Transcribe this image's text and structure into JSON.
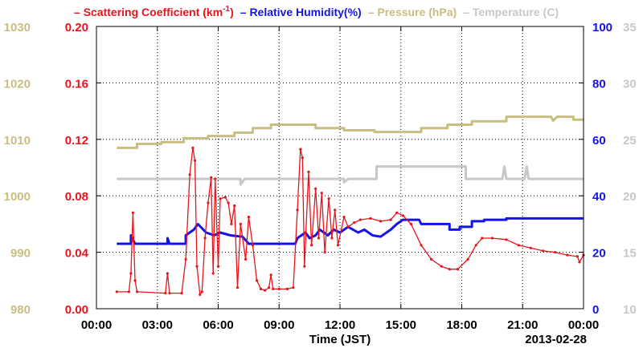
{
  "chart_data": {
    "type": "line",
    "legend_position": "top",
    "legend": [
      {
        "dash": "–",
        "label": "Scattering Coefficient (km",
        "sup": "-1",
        "after": ")",
        "color": "#e8141c"
      },
      {
        "dash": "–",
        "label": "Relative Humidity(%)",
        "sup": "",
        "after": "",
        "color": "#1414e6"
      },
      {
        "dash": "–",
        "label": "Pressure (hPa)",
        "sup": "",
        "after": "",
        "color": "#c8be82"
      },
      {
        "dash": "–",
        "label": "Temperature (",
        "sup": "",
        "after": "C)",
        "color": "#c8c8c8"
      }
    ],
    "xlabel": "Time (JST)",
    "date_label": "2013-02-28",
    "x_ticks": [
      "00:00",
      "03:00",
      "06:00",
      "09:00",
      "12:00",
      "15:00",
      "18:00",
      "21:00",
      "00:00"
    ],
    "x_range_hours": [
      0,
      24
    ],
    "grid": true,
    "axes": {
      "scattering": {
        "ticks": [
          "0.00",
          "0.04",
          "0.08",
          "0.12",
          "0.16",
          "0.20"
        ],
        "range": [
          0,
          0.2
        ],
        "color": "#e8141c"
      },
      "pressure": {
        "ticks": [
          "980",
          "990",
          "1000",
          "1010",
          "1020",
          "1030"
        ],
        "range": [
          980,
          1030
        ],
        "color": "#c8be82"
      },
      "humidity": {
        "ticks": [
          "0",
          "20",
          "40",
          "60",
          "80",
          "100"
        ],
        "range": [
          0,
          100
        ],
        "color": "#1414e6"
      },
      "temperature": {
        "ticks": [
          "10",
          "15",
          "20",
          "25",
          "30",
          "35"
        ],
        "range": [
          10,
          35
        ],
        "color": "#c8c8c8"
      }
    },
    "series": [
      {
        "name": "Pressure (hPa)",
        "axis": "pressure",
        "color": "#c8be82",
        "step": true,
        "points": [
          [
            1.0,
            1008.5
          ],
          [
            2.0,
            1008.5
          ],
          [
            2.0,
            1009.2
          ],
          [
            3.2,
            1009.2
          ],
          [
            3.2,
            1009.5
          ],
          [
            4.3,
            1009.5
          ],
          [
            4.3,
            1010.2
          ],
          [
            5.5,
            1010.2
          ],
          [
            5.5,
            1010.6
          ],
          [
            6.8,
            1010.6
          ],
          [
            6.8,
            1011.2
          ],
          [
            7.7,
            1011.2
          ],
          [
            7.7,
            1012.0
          ],
          [
            8.6,
            1012.0
          ],
          [
            8.6,
            1012.6
          ],
          [
            10.8,
            1012.6
          ],
          [
            10.8,
            1012.0
          ],
          [
            12.2,
            1012.0
          ],
          [
            12.2,
            1011.6
          ],
          [
            13.7,
            1011.6
          ],
          [
            13.7,
            1011.3
          ],
          [
            16.0,
            1011.3
          ],
          [
            16.0,
            1012.0
          ],
          [
            17.3,
            1012.0
          ],
          [
            17.3,
            1012.6
          ],
          [
            18.5,
            1012.6
          ],
          [
            18.5,
            1013.2
          ],
          [
            20.2,
            1013.2
          ],
          [
            20.2,
            1014.0
          ],
          [
            22.4,
            1014.0
          ],
          [
            22.5,
            1013.3
          ],
          [
            22.7,
            1014.0
          ],
          [
            23.5,
            1014.0
          ],
          [
            23.5,
            1013.5
          ],
          [
            24.0,
            1013.5
          ]
        ]
      },
      {
        "name": "Temperature (C)",
        "axis": "temperature",
        "color": "#c8c8c8",
        "step": true,
        "points": [
          [
            1.0,
            21.5
          ],
          [
            7.1,
            21.5
          ],
          [
            7.1,
            21.0
          ],
          [
            7.3,
            21.5
          ],
          [
            12.2,
            21.5
          ],
          [
            12.2,
            21.2
          ],
          [
            12.4,
            21.5
          ],
          [
            13.8,
            21.5
          ],
          [
            13.8,
            22.6
          ],
          [
            18.2,
            22.6
          ],
          [
            18.2,
            21.5
          ],
          [
            20.0,
            21.5
          ],
          [
            20.1,
            22.6
          ],
          [
            20.2,
            21.5
          ],
          [
            21.1,
            21.5
          ],
          [
            21.2,
            22.6
          ],
          [
            21.3,
            21.5
          ],
          [
            24.0,
            21.5
          ]
        ]
      },
      {
        "name": "Relative Humidity(%)",
        "axis": "humidity",
        "color": "#1414e6",
        "step": true,
        "points": [
          [
            1.0,
            23.0
          ],
          [
            1.7,
            23.0
          ],
          [
            1.7,
            26.0
          ],
          [
            1.9,
            23.0
          ],
          [
            3.5,
            23.0
          ],
          [
            3.5,
            25.0
          ],
          [
            3.6,
            23.0
          ],
          [
            4.4,
            23.0
          ],
          [
            4.4,
            26.0
          ],
          [
            4.8,
            28.0
          ],
          [
            5.0,
            30.0
          ],
          [
            5.4,
            27.0
          ],
          [
            5.8,
            26.0
          ],
          [
            6.1,
            27.0
          ],
          [
            6.6,
            26.0
          ],
          [
            7.2,
            25.5
          ],
          [
            7.5,
            23.0
          ],
          [
            9.8,
            23.0
          ],
          [
            9.9,
            25.0
          ],
          [
            10.1,
            26.0
          ],
          [
            10.3,
            27.0
          ],
          [
            10.5,
            25.0
          ],
          [
            10.8,
            26.0
          ],
          [
            11.0,
            28.0
          ],
          [
            11.4,
            26.0
          ],
          [
            11.7,
            28.0
          ],
          [
            12.0,
            27.0
          ],
          [
            12.4,
            29.0
          ],
          [
            12.9,
            27.0
          ],
          [
            13.2,
            28.0
          ],
          [
            13.6,
            26.0
          ],
          [
            14.0,
            25.5
          ],
          [
            14.5,
            28.0
          ],
          [
            14.8,
            30.0
          ],
          [
            15.1,
            31.5
          ],
          [
            15.9,
            31.5
          ],
          [
            16.0,
            30.0
          ],
          [
            17.4,
            30.0
          ],
          [
            17.4,
            28.0
          ],
          [
            17.9,
            28.0
          ],
          [
            17.9,
            29.0
          ],
          [
            18.5,
            29.0
          ],
          [
            18.5,
            31.0
          ],
          [
            19.1,
            31.0
          ],
          [
            19.1,
            31.5
          ],
          [
            20.2,
            31.5
          ],
          [
            20.2,
            32.0
          ],
          [
            24.0,
            32.0
          ]
        ]
      },
      {
        "name": "Scattering Coefficient (km-1)",
        "axis": "scattering",
        "color": "#e8141c",
        "step": false,
        "markers": true,
        "points": [
          [
            1.0,
            0.012
          ],
          [
            1.6,
            0.012
          ],
          [
            1.7,
            0.025
          ],
          [
            1.8,
            0.068
          ],
          [
            1.9,
            0.02
          ],
          [
            2.0,
            0.012
          ],
          [
            3.4,
            0.011
          ],
          [
            3.5,
            0.025
          ],
          [
            3.6,
            0.011
          ],
          [
            4.2,
            0.011
          ],
          [
            4.4,
            0.035
          ],
          [
            4.6,
            0.095
          ],
          [
            4.75,
            0.114
          ],
          [
            4.85,
            0.105
          ],
          [
            4.95,
            0.03
          ],
          [
            5.1,
            0.01
          ],
          [
            5.2,
            0.012
          ],
          [
            5.35,
            0.05
          ],
          [
            5.5,
            0.075
          ],
          [
            5.65,
            0.093
          ],
          [
            5.75,
            0.025
          ],
          [
            5.85,
            0.092
          ],
          [
            6.0,
            0.03
          ],
          [
            6.1,
            0.078
          ],
          [
            6.35,
            0.079
          ],
          [
            6.5,
            0.075
          ],
          [
            6.65,
            0.06
          ],
          [
            6.8,
            0.073
          ],
          [
            6.95,
            0.015
          ],
          [
            7.1,
            0.06
          ],
          [
            7.35,
            0.035
          ],
          [
            7.5,
            0.065
          ],
          [
            7.7,
            0.045
          ],
          [
            7.9,
            0.02
          ],
          [
            8.1,
            0.014
          ],
          [
            8.3,
            0.013
          ],
          [
            8.5,
            0.015
          ],
          [
            8.6,
            0.024
          ],
          [
            8.7,
            0.014
          ],
          [
            9.0,
            0.014
          ],
          [
            9.4,
            0.014
          ],
          [
            9.7,
            0.015
          ],
          [
            9.9,
            0.07
          ],
          [
            10.05,
            0.113
          ],
          [
            10.15,
            0.107
          ],
          [
            10.25,
            0.03
          ],
          [
            10.45,
            0.097
          ],
          [
            10.6,
            0.045
          ],
          [
            10.8,
            0.085
          ],
          [
            10.95,
            0.05
          ],
          [
            11.1,
            0.082
          ],
          [
            11.25,
            0.04
          ],
          [
            11.45,
            0.078
          ],
          [
            11.6,
            0.05
          ],
          [
            11.75,
            0.07
          ],
          [
            11.9,
            0.045
          ],
          [
            12.2,
            0.065
          ],
          [
            12.4,
            0.058
          ],
          [
            12.7,
            0.061
          ],
          [
            13.0,
            0.063
          ],
          [
            13.5,
            0.064
          ],
          [
            14.0,
            0.062
          ],
          [
            14.5,
            0.063
          ],
          [
            14.8,
            0.068
          ],
          [
            15.1,
            0.066
          ],
          [
            15.5,
            0.06
          ],
          [
            16.0,
            0.045
          ],
          [
            16.5,
            0.035
          ],
          [
            17.0,
            0.03
          ],
          [
            17.4,
            0.028
          ],
          [
            17.8,
            0.028
          ],
          [
            18.3,
            0.035
          ],
          [
            18.7,
            0.045
          ],
          [
            19.0,
            0.05
          ],
          [
            19.5,
            0.05
          ],
          [
            20.2,
            0.049
          ],
          [
            20.8,
            0.045
          ],
          [
            21.4,
            0.043
          ],
          [
            22.0,
            0.041
          ],
          [
            22.6,
            0.04
          ],
          [
            23.2,
            0.038
          ],
          [
            23.7,
            0.037
          ],
          [
            23.8,
            0.033
          ],
          [
            24.0,
            0.038
          ]
        ]
      }
    ]
  }
}
